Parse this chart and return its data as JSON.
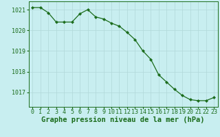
{
  "x": [
    0,
    1,
    2,
    3,
    4,
    5,
    6,
    7,
    8,
    9,
    10,
    11,
    12,
    13,
    14,
    15,
    16,
    17,
    18,
    19,
    20,
    21,
    22,
    23
  ],
  "y": [
    1021.1,
    1021.1,
    1020.85,
    1020.4,
    1020.4,
    1020.4,
    1020.8,
    1021.0,
    1020.65,
    1020.55,
    1020.35,
    1020.2,
    1019.9,
    1019.55,
    1019.0,
    1018.6,
    1017.85,
    1017.5,
    1017.15,
    1016.85,
    1016.65,
    1016.6,
    1016.6,
    1016.75
  ],
  "ylim_min": 1016.3,
  "ylim_max": 1021.4,
  "yticks": [
    1017,
    1018,
    1019,
    1020,
    1021
  ],
  "xticks": [
    0,
    1,
    2,
    3,
    4,
    5,
    6,
    7,
    8,
    9,
    10,
    11,
    12,
    13,
    14,
    15,
    16,
    17,
    18,
    19,
    20,
    21,
    22,
    23
  ],
  "xlabel": "Graphe pression niveau de la mer (hPa)",
  "line_color": "#1a6b1a",
  "marker_color": "#1a6b1a",
  "bg_color": "#c8eef0",
  "grid_color": "#b0d8d8",
  "axis_color": "#1a6b1a",
  "tick_color": "#1a6b1a",
  "xlabel_color": "#1a6b1a",
  "xlabel_fontsize": 7.5,
  "tick_fontsize": 6.0
}
